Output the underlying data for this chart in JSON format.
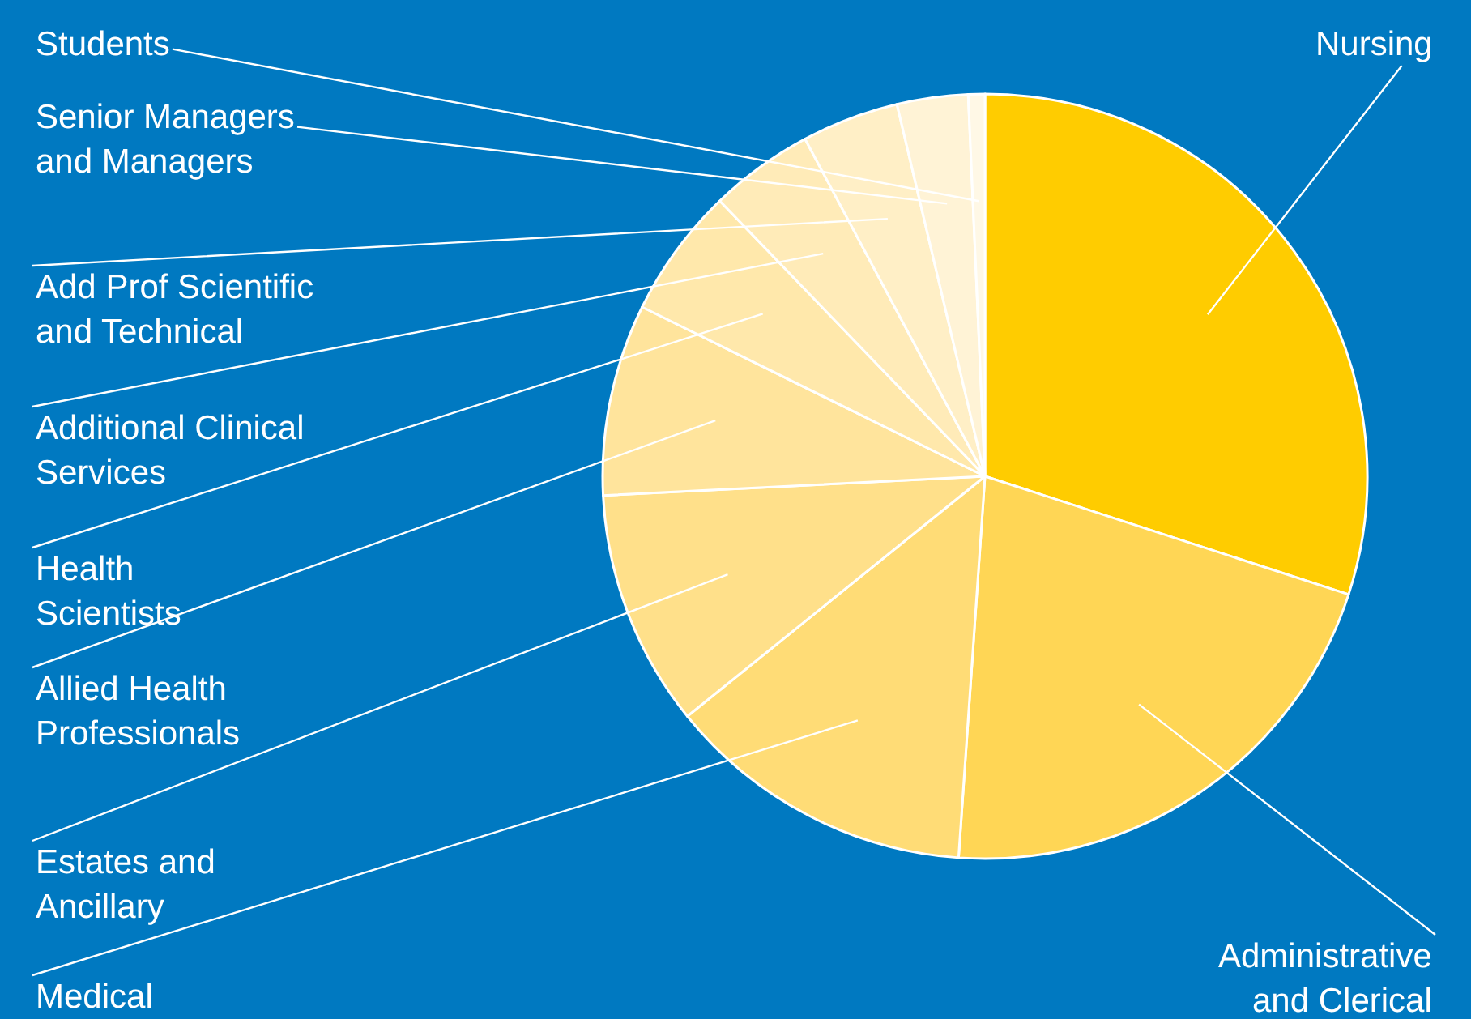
{
  "chart_data": {
    "type": "pie",
    "categories": [
      "Nursing",
      "Administrative\nand Clerical",
      "Medical",
      "Estates and\nAncillary",
      "Allied Health\nProfessionals",
      "Health\nScientists",
      "Additional Clinical\nServices",
      "Add Prof Scientific\nand Technical",
      "Senior Managers\nand Managers",
      "Students"
    ],
    "values": [
      30,
      21.1,
      13.1,
      10,
      8.1,
      5.5,
      4.4,
      4.1,
      3.0,
      0.7
    ],
    "colors": [
      "#ffcc00",
      "#ffd655",
      "#ffdc76",
      "#ffe08a",
      "#ffe49c",
      "#ffe8ab",
      "#ffebb8",
      "#ffefc6",
      "#fff3d6",
      "#fff8e6"
    ],
    "legend": false
  }
}
